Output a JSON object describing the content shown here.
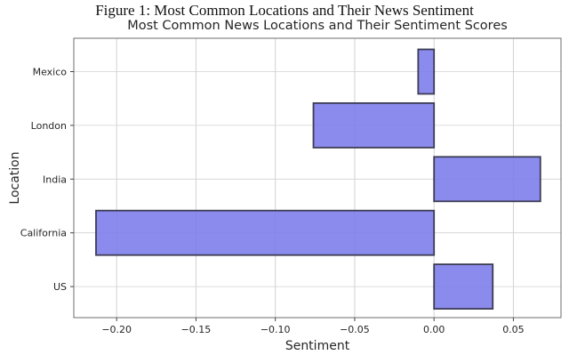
{
  "caption": "Figure 1: Most Common Locations and Their News Sentiment",
  "chart_data": {
    "type": "bar",
    "orientation": "horizontal",
    "title": "Most Common News Locations and Their Sentiment Scores",
    "xlabel": "Sentiment",
    "ylabel": "Location",
    "categories": [
      "Mexico",
      "London",
      "India",
      "California",
      "US"
    ],
    "values": [
      -0.01,
      -0.076,
      0.067,
      -0.213,
      0.037
    ],
    "xticks": [
      -0.2,
      -0.15,
      -0.1,
      -0.05,
      0.0,
      0.05
    ],
    "xtick_labels": [
      "−0.20",
      "−0.15",
      "−0.10",
      "−0.05",
      "0.00",
      "0.05"
    ],
    "xlim": [
      -0.227,
      0.08
    ],
    "grid": true,
    "legend_position": "none",
    "bar_color": "#7b7bec",
    "bar_edge_color": "#3c3c55",
    "grid_color": "#d2d2d2",
    "spine_color": "#6e6e6e",
    "tick_color": "#444444"
  }
}
